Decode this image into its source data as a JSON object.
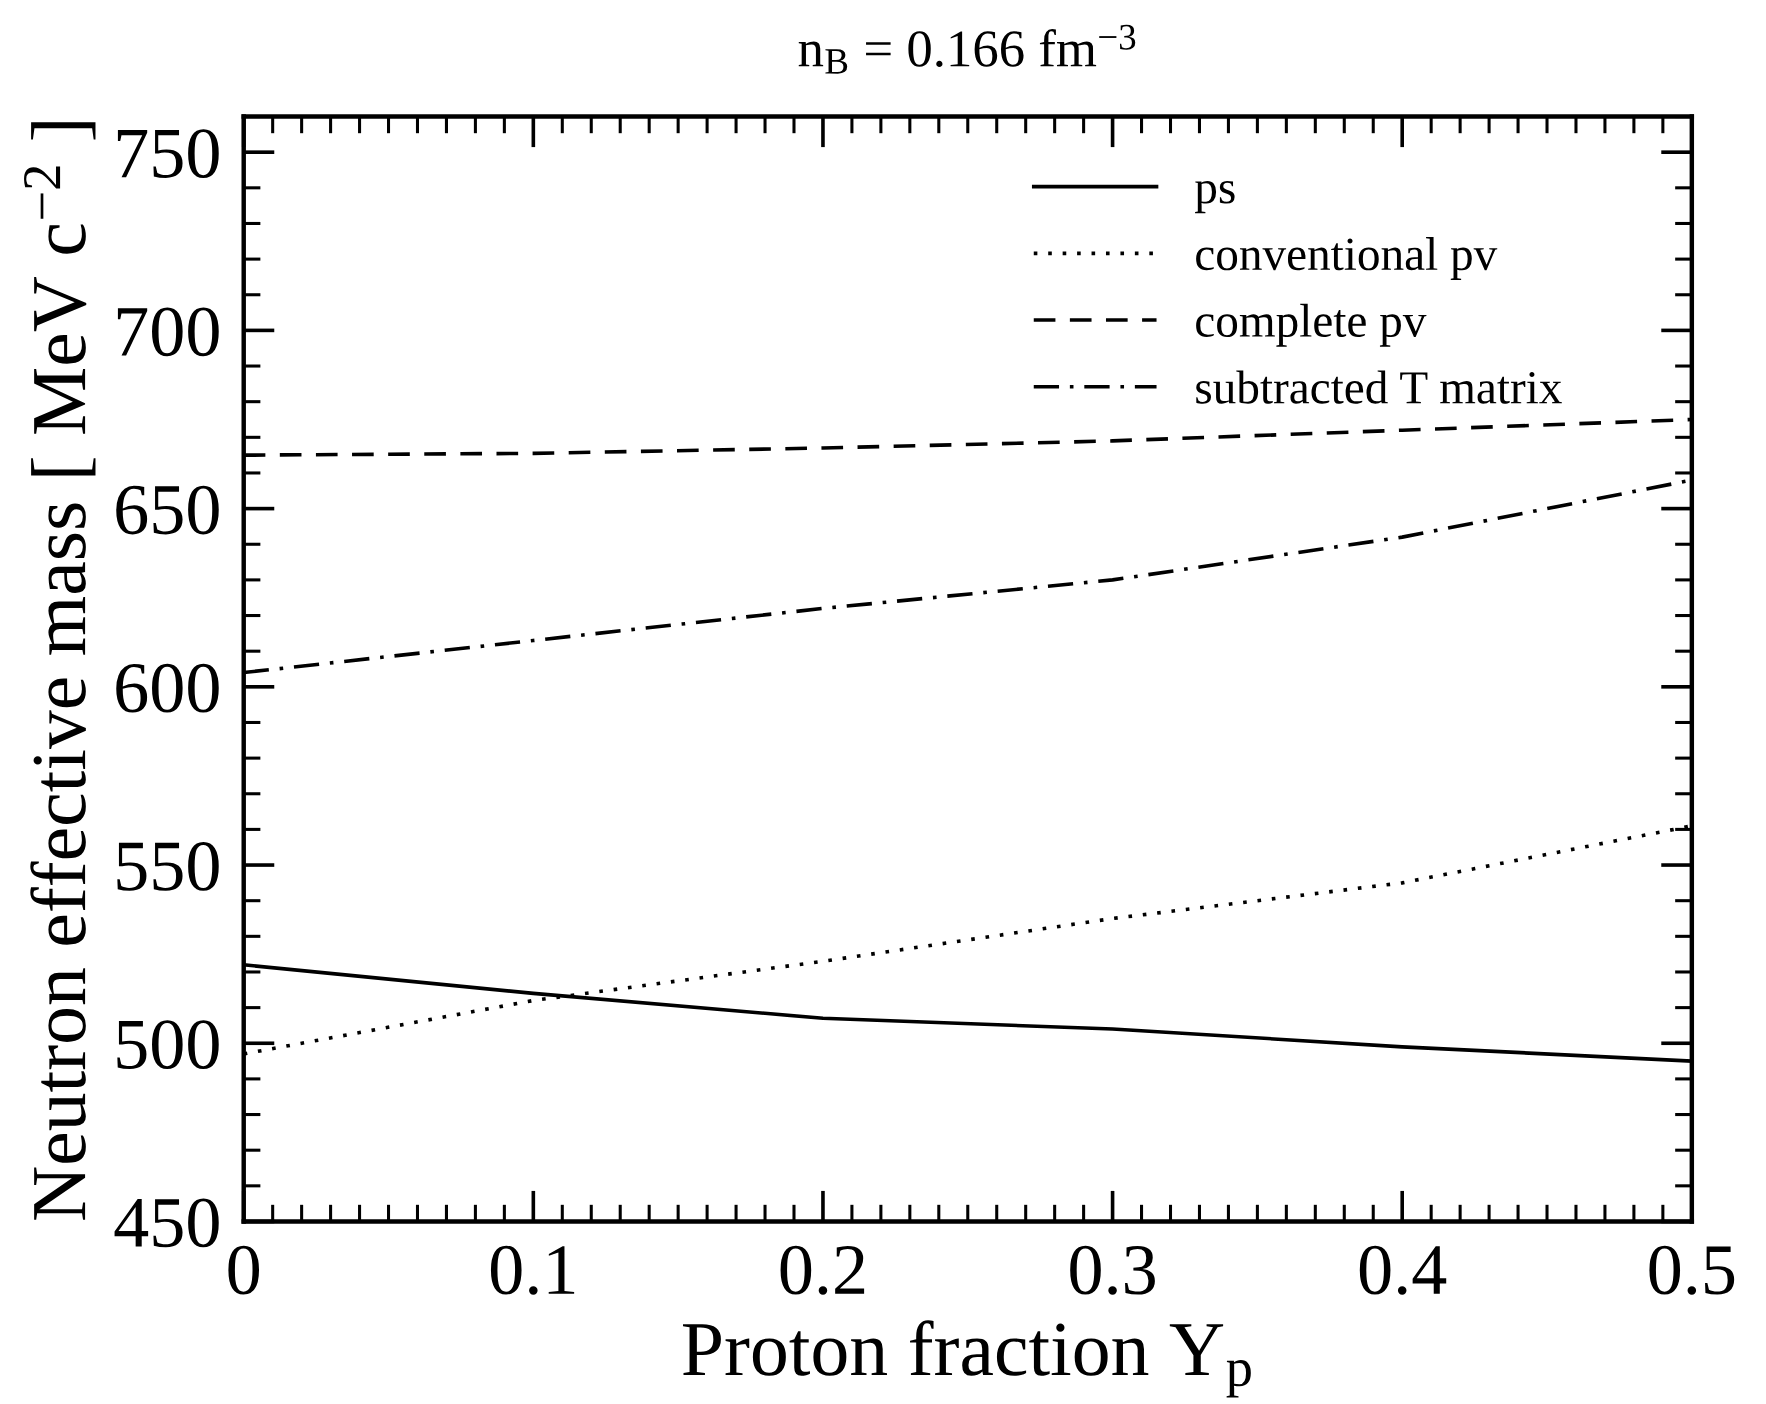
{
  "chart_data": {
    "type": "line",
    "title": "n$_{B}$ = 0.166 fm$^{−3}$",
    "xlabel": "Proton fraction Y$_{p}$",
    "ylabel": "Neutron effective mass [ MeV c$^{−2}$ ]",
    "x": [
      0,
      0.1,
      0.2,
      0.3,
      0.4,
      0.5
    ],
    "series": [
      {
        "name": "ps",
        "color": "#000000",
        "line_style": "solid",
        "values": [
          522,
          514,
          507,
          504,
          499,
          495
        ]
      },
      {
        "name": "conventional pv",
        "color": "#000000",
        "line_style": "dotted",
        "values": [
          497,
          512,
          523,
          535,
          545,
          561
        ]
      },
      {
        "name": "complete pv",
        "color": "#000000",
        "line_style": "dashed",
        "values": [
          665,
          665.5,
          667,
          669,
          672,
          675
        ]
      },
      {
        "name": "subtracted T matrix",
        "color": "#000000",
        "line_style": "dashdot",
        "values": [
          604,
          613,
          622,
          630,
          642,
          658
        ]
      }
    ],
    "xlim": [
      0,
      0.5
    ],
    "ylim": [
      450,
      760
    ],
    "xticks": [
      0,
      0.1,
      0.2,
      0.3,
      0.4,
      0.5
    ],
    "yticks": [
      450,
      500,
      550,
      600,
      650,
      700,
      750
    ],
    "grid": false,
    "legend": "top right",
    "marker": "none"
  }
}
